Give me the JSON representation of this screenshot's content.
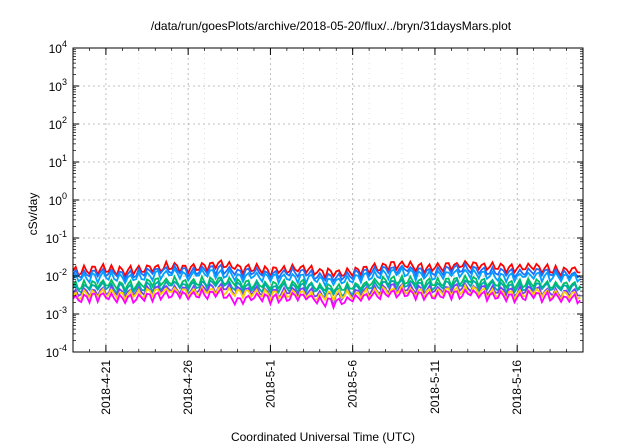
{
  "chart_data": {
    "type": "line",
    "title": "/data/run/goesPlots/archive/2018-05-20/flux/../bryn/31daysMars.plot",
    "xlabel": "Coordinated Universal Time (UTC)",
    "ylabel": "cSv/day",
    "yscale": "log",
    "ylim": [
      0.0001,
      10000
    ],
    "xlim": [
      "2018-04-19",
      "2018-05-20"
    ],
    "x_ticks": [
      "2018-4-21",
      "2018-4-26",
      "2018-5-1",
      "2018-5-6",
      "2018-5-11",
      "2018-5-16"
    ],
    "y_ticks": [
      {
        "base": "10",
        "exp": "-4"
      },
      {
        "base": "10",
        "exp": "-3"
      },
      {
        "base": "10",
        "exp": "-2"
      },
      {
        "base": "10",
        "exp": "-1"
      },
      {
        "base": "10",
        "exp": "0"
      },
      {
        "base": "10",
        "exp": "1"
      },
      {
        "base": "10",
        "exp": "2"
      },
      {
        "base": "10",
        "exp": "3"
      },
      {
        "base": "10",
        "exp": "4"
      }
    ],
    "grid": true,
    "legend": "none",
    "series": [
      {
        "color": "#ff0000",
        "level": 0.0145,
        "values": [
          0.013,
          0.015,
          0.016,
          0.014,
          0.015,
          0.017,
          0.018,
          0.016,
          0.019,
          0.02,
          0.017,
          0.016,
          0.014,
          0.015,
          0.016,
          0.013,
          0.012,
          0.014,
          0.016,
          0.019,
          0.02,
          0.018,
          0.017,
          0.019,
          0.02,
          0.018,
          0.017,
          0.016,
          0.018,
          0.015,
          0.014
        ]
      },
      {
        "color": "#1f6fff",
        "level": 0.011,
        "values": [
          0.011,
          0.012,
          0.013,
          0.011,
          0.012,
          0.014,
          0.015,
          0.013,
          0.015,
          0.016,
          0.013,
          0.013,
          0.011,
          0.012,
          0.013,
          0.01,
          0.009,
          0.011,
          0.013,
          0.015,
          0.016,
          0.014,
          0.013,
          0.015,
          0.016,
          0.014,
          0.013,
          0.012,
          0.014,
          0.012,
          0.011
        ]
      },
      {
        "color": "#00a0ff",
        "level": 0.0085,
        "values": [
          0.0085,
          0.0095,
          0.01,
          0.009,
          0.0095,
          0.011,
          0.012,
          0.01,
          0.012,
          0.012,
          0.01,
          0.01,
          0.009,
          0.0095,
          0.01,
          0.008,
          0.007,
          0.0085,
          0.01,
          0.012,
          0.013,
          0.011,
          0.01,
          0.012,
          0.012,
          0.011,
          0.01,
          0.0095,
          0.011,
          0.0095,
          0.009
        ]
      },
      {
        "color": "#00c060",
        "level": 0.0055,
        "values": [
          0.0055,
          0.006,
          0.0065,
          0.0058,
          0.006,
          0.007,
          0.0075,
          0.0065,
          0.0075,
          0.008,
          0.0065,
          0.0065,
          0.0058,
          0.006,
          0.0065,
          0.0052,
          0.0046,
          0.0055,
          0.0065,
          0.0075,
          0.008,
          0.007,
          0.0065,
          0.0075,
          0.008,
          0.007,
          0.0065,
          0.006,
          0.007,
          0.006,
          0.0058
        ]
      },
      {
        "color": "#00aaaa",
        "level": 0.0045,
        "values": [
          0.0045,
          0.005,
          0.0054,
          0.0048,
          0.005,
          0.0058,
          0.0062,
          0.0054,
          0.0062,
          0.0066,
          0.0054,
          0.0054,
          0.0048,
          0.005,
          0.0054,
          0.0043,
          0.0038,
          0.0045,
          0.0054,
          0.0062,
          0.0066,
          0.0058,
          0.0054,
          0.0062,
          0.0066,
          0.0058,
          0.0054,
          0.005,
          0.0058,
          0.005,
          0.0048
        ]
      },
      {
        "color": "#7a3cff",
        "level": 0.0035,
        "values": [
          0.0035,
          0.0039,
          0.0042,
          0.0037,
          0.0039,
          0.0045,
          0.0048,
          0.0042,
          0.0048,
          0.0051,
          0.0042,
          0.0042,
          0.0037,
          0.0039,
          0.0042,
          0.0033,
          0.003,
          0.0035,
          0.0042,
          0.0048,
          0.0051,
          0.0045,
          0.0042,
          0.0048,
          0.0051,
          0.0045,
          0.0042,
          0.0039,
          0.0045,
          0.0039,
          0.0037
        ]
      },
      {
        "color": "#ffd000",
        "level": 0.003,
        "values": [
          0.003,
          0.0033,
          0.0036,
          0.0032,
          0.0033,
          0.0038,
          0.0041,
          0.0036,
          0.0041,
          0.0043,
          0.0036,
          0.0036,
          0.0032,
          0.0033,
          0.0036,
          0.0028,
          0.0035,
          0.003,
          0.0036,
          0.0041,
          0.0043,
          0.0038,
          0.0036,
          0.0041,
          0.0043,
          0.0038,
          0.0036,
          0.0033,
          0.0038,
          0.0033,
          0.0032
        ]
      },
      {
        "color": "#ff00ff",
        "level": 0.0025,
        "values": [
          0.0025,
          0.0028,
          0.003,
          0.0026,
          0.0028,
          0.0032,
          0.0034,
          0.003,
          0.0034,
          0.0036,
          0.0022,
          0.003,
          0.0026,
          0.0028,
          0.003,
          0.0023,
          0.0021,
          0.0025,
          0.003,
          0.0034,
          0.0036,
          0.0032,
          0.003,
          0.0034,
          0.0036,
          0.0032,
          0.003,
          0.0028,
          0.0032,
          0.0028,
          0.0026
        ]
      }
    ]
  }
}
